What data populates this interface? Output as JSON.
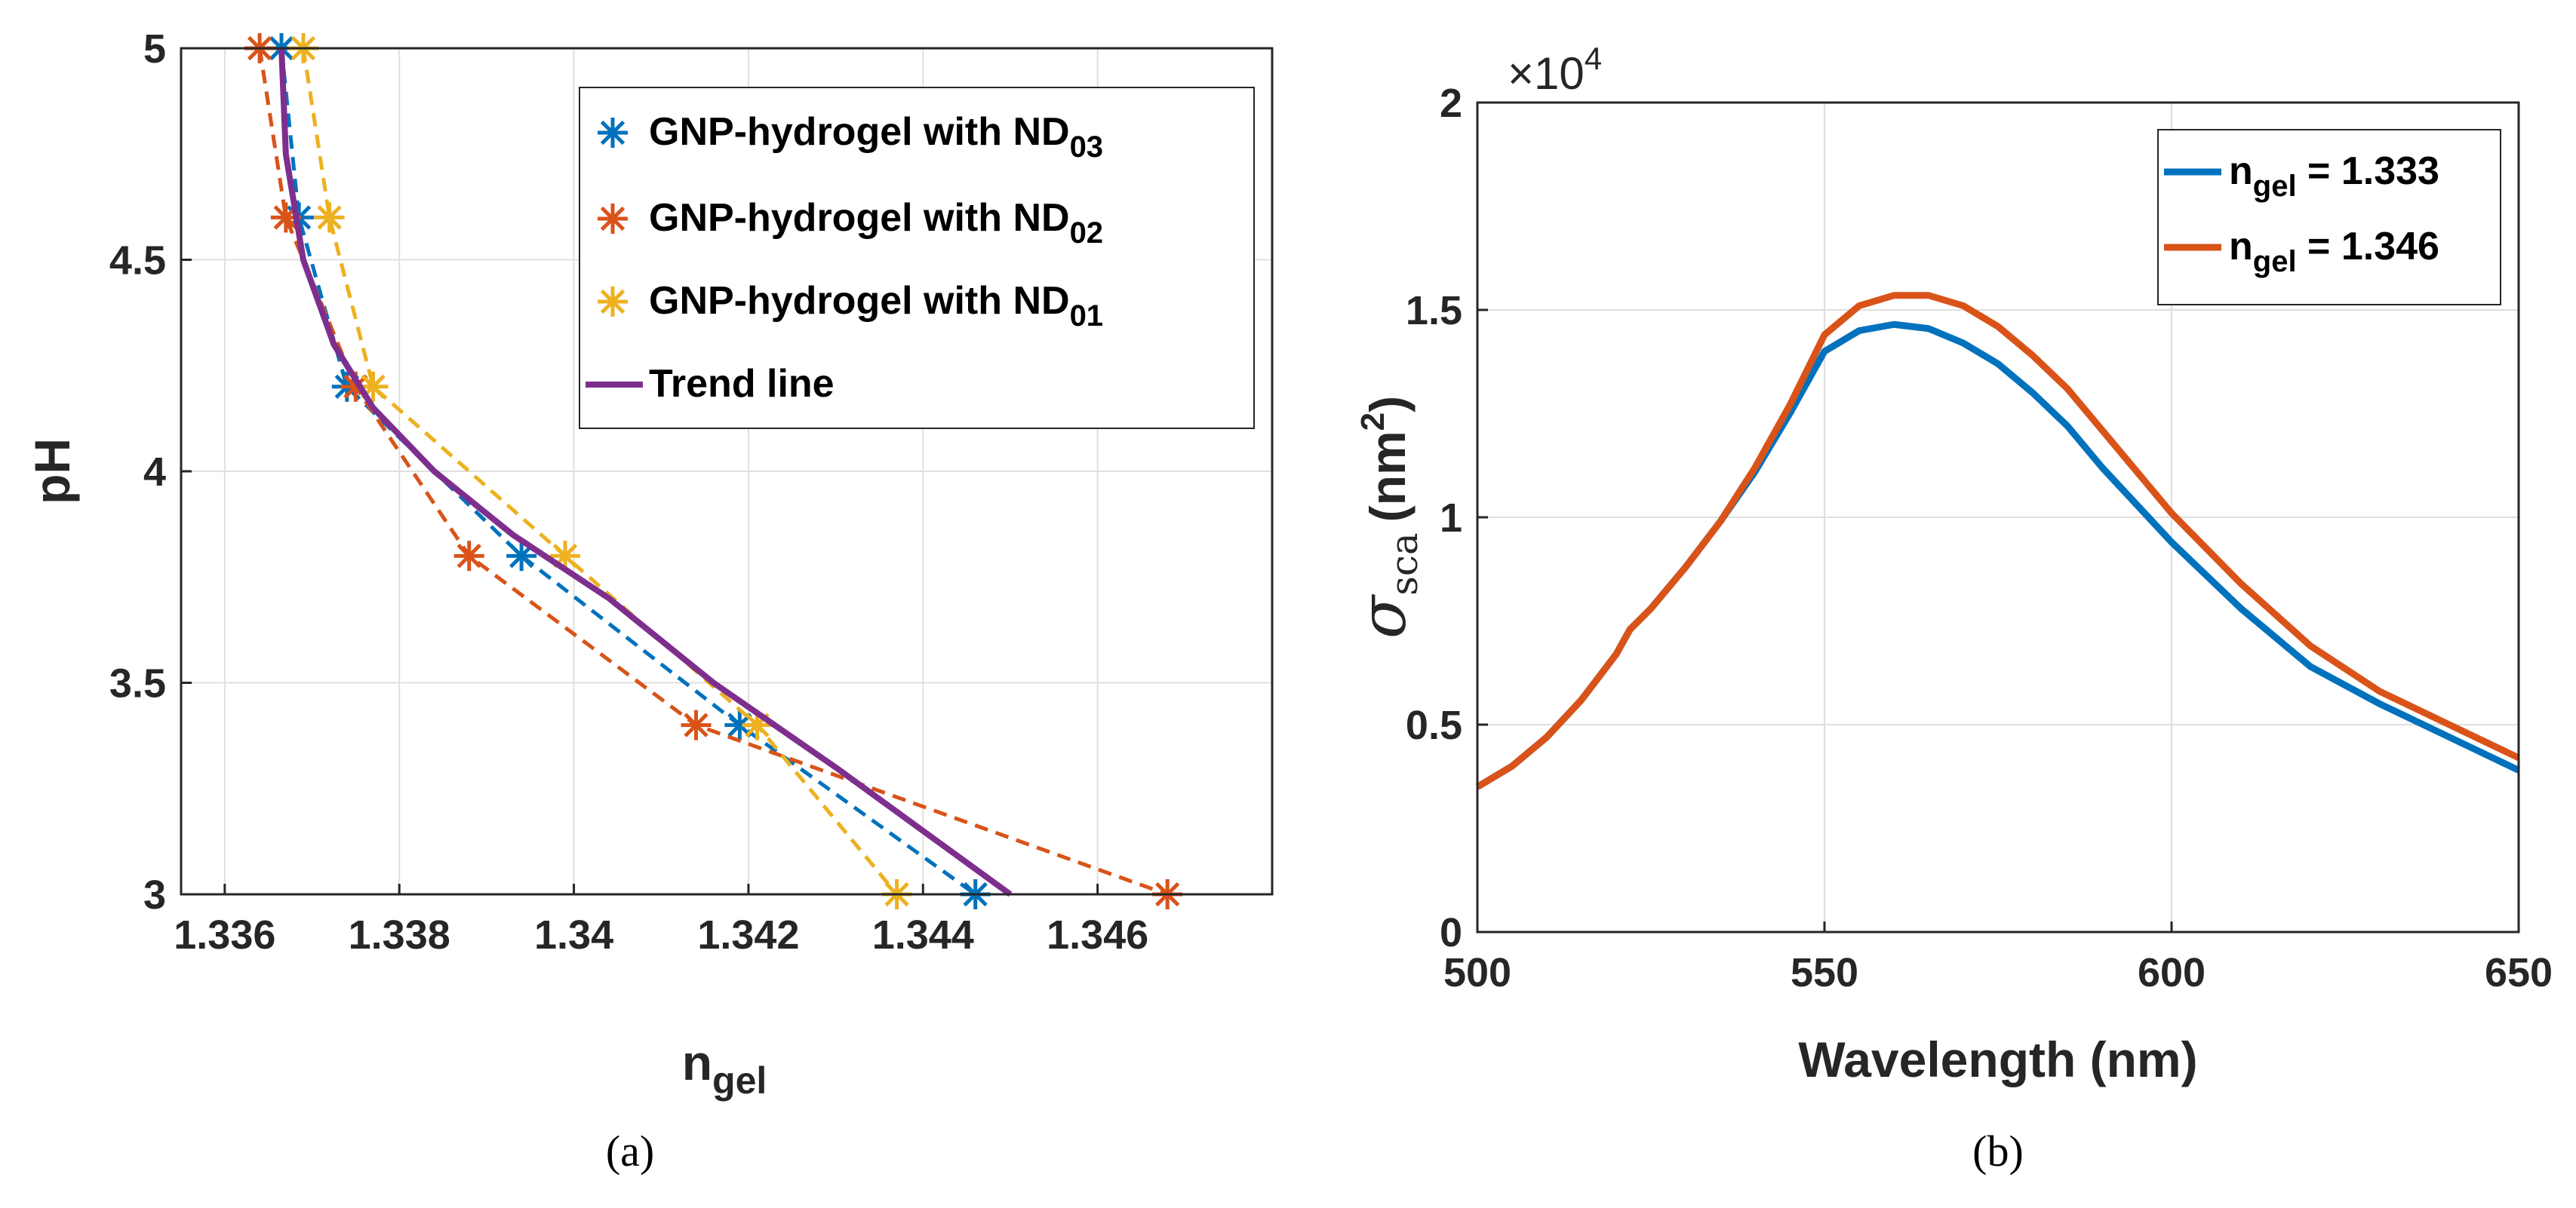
{
  "colors": {
    "blue": "#0072BD",
    "orange": "#D95319",
    "yellow": "#EDB120",
    "purple": "#7E2F8E",
    "axis": "#262626"
  },
  "chart_data": [
    {
      "type": "line",
      "panel": "a",
      "caption": "(a)",
      "title": "",
      "ylabel": "pH",
      "xlabel_main": "n",
      "xlabel_sub": "gel",
      "xlim": [
        1.3355,
        1.348
      ],
      "ylim": [
        3,
        5
      ],
      "xticks": [
        1.336,
        1.338,
        1.34,
        1.342,
        1.344,
        1.346
      ],
      "xtick_labels": [
        "1.336",
        "1.338",
        "1.34",
        "1.342",
        "1.344",
        "1.346"
      ],
      "yticks": [
        3,
        3.5,
        4,
        4.5,
        5
      ],
      "ytick_labels": [
        "3",
        "3.5",
        "4",
        "4.5",
        "5"
      ],
      "grid": true,
      "legend_position": "top-right",
      "series": [
        {
          "name": "GNP-hydrogel with ND03",
          "legend_main": "GNP-hydrogel with ND",
          "legend_sub": "03",
          "color_key": "blue",
          "style": "dashed",
          "marker": "asterisk",
          "x": [
            1.33665,
            1.33685,
            1.3374,
            1.3394,
            1.3419,
            1.3446
          ],
          "y": [
            5.0,
            4.6,
            4.2,
            3.8,
            3.4,
            3.0
          ]
        },
        {
          "name": "GNP-hydrogel with ND02",
          "legend_main": "GNP-hydrogel with ND",
          "legend_sub": "02",
          "color_key": "orange",
          "style": "dashed",
          "marker": "asterisk",
          "x": [
            1.3364,
            1.3367,
            1.3375,
            1.3388,
            1.3414,
            1.3468
          ],
          "y": [
            5.0,
            4.6,
            4.2,
            3.8,
            3.4,
            3.0
          ]
        },
        {
          "name": "GNP-hydrogel with ND01",
          "legend_main": "GNP-hydrogel with ND",
          "legend_sub": "01",
          "color_key": "yellow",
          "style": "dashed",
          "marker": "asterisk",
          "x": [
            1.3369,
            1.3372,
            1.3377,
            1.3399,
            1.3421,
            1.3437
          ],
          "y": [
            5.0,
            4.6,
            4.2,
            3.8,
            3.4,
            3.0
          ]
        },
        {
          "name": "Trend line",
          "legend_main": "Trend line",
          "legend_sub": "",
          "color_key": "purple",
          "style": "solid",
          "marker": "none",
          "x": [
            1.33665,
            1.3367,
            1.3369,
            1.33725,
            1.3377,
            1.3384,
            1.3393,
            1.3404,
            1.3416,
            1.343,
            1.345
          ],
          "y": [
            5.0,
            4.75,
            4.5,
            4.3,
            4.15,
            4.0,
            3.85,
            3.7,
            3.5,
            3.3,
            3.0
          ]
        }
      ]
    },
    {
      "type": "line",
      "panel": "b",
      "caption": "(b)",
      "title": "",
      "ylabel_symbol": "σ",
      "ylabel_sub": "sca",
      "ylabel_unit": "(nm",
      "ylabel_unit_sup": "2",
      "ylabel_close": ")",
      "xlabel": "Wavelength (nm)",
      "multiplier_base": "×10",
      "multiplier_exp": "4",
      "xlim": [
        500,
        650
      ],
      "ylim": [
        0,
        2
      ],
      "xticks": [
        500,
        550,
        600,
        650
      ],
      "xtick_labels": [
        "500",
        "550",
        "600",
        "650"
      ],
      "yticks": [
        0,
        0.5,
        1,
        1.5,
        2
      ],
      "ytick_labels": [
        "0",
        "0.5",
        "1",
        "1.5",
        "2"
      ],
      "grid": true,
      "legend_position": "top-right",
      "series": [
        {
          "name": "n_gel = 1.333",
          "legend_main": "n",
          "legend_sub": "gel",
          "legend_value": " = 1.333",
          "color_key": "blue",
          "x": [
            500,
            505,
            510,
            515,
            520,
            522,
            525,
            530,
            535,
            540,
            545,
            550,
            555,
            560,
            565,
            570,
            575,
            580,
            585,
            590,
            595,
            600,
            610,
            620,
            630,
            640,
            650
          ],
          "y": [
            0.35,
            0.4,
            0.47,
            0.56,
            0.67,
            0.73,
            0.78,
            0.88,
            0.99,
            1.11,
            1.25,
            1.4,
            1.45,
            1.465,
            1.455,
            1.42,
            1.37,
            1.3,
            1.22,
            1.12,
            1.03,
            0.94,
            0.78,
            0.64,
            0.55,
            0.47,
            0.39
          ]
        },
        {
          "name": "n_gel = 1.346",
          "legend_main": "n",
          "legend_sub": "gel",
          "legend_value": " = 1.346",
          "color_key": "orange",
          "x": [
            500,
            505,
            510,
            515,
            520,
            522,
            525,
            530,
            535,
            540,
            545,
            550,
            555,
            560,
            565,
            570,
            575,
            580,
            585,
            590,
            595,
            600,
            610,
            620,
            630,
            640,
            650
          ],
          "y": [
            0.35,
            0.4,
            0.47,
            0.56,
            0.67,
            0.73,
            0.78,
            0.88,
            0.99,
            1.12,
            1.27,
            1.44,
            1.51,
            1.535,
            1.535,
            1.51,
            1.46,
            1.39,
            1.31,
            1.21,
            1.11,
            1.01,
            0.84,
            0.69,
            0.58,
            0.5,
            0.42
          ]
        }
      ]
    }
  ]
}
